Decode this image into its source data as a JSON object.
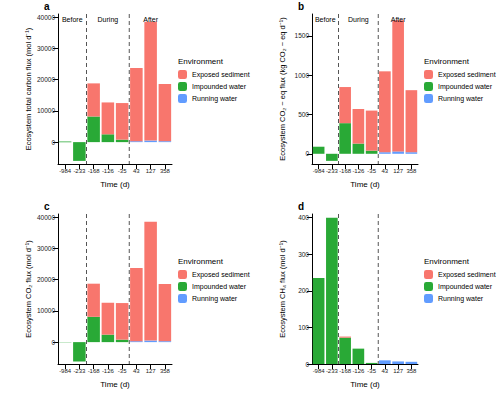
{
  "chart_data": [
    {
      "type": "bar",
      "title": "a",
      "x_label": "Time (d)",
      "y_label": "Ecosystem total carbon flux (mol d⁻¹)",
      "categories": [
        "-984",
        "-233",
        "-168",
        "-126",
        "-35",
        "43",
        "127",
        "358"
      ],
      "series": [
        {
          "name": "Exposed sediment",
          "color": "#F8766D",
          "values": [
            0,
            0,
            10600,
            10200,
            11700,
            23400,
            38000,
            18300
          ]
        },
        {
          "name": "Impounded water",
          "color": "#29A936",
          "values": [
            200,
            -6000,
            8200,
            2500,
            800,
            0,
            0,
            0
          ]
        },
        {
          "name": "Running water",
          "color": "#619CFF",
          "values": [
            0,
            0,
            0,
            0,
            0,
            300,
            500,
            300
          ]
        }
      ],
      "ylim": [
        -7000,
        41000
      ],
      "yticks": [
        0,
        10000,
        20000,
        30000,
        40000
      ],
      "stacked": true,
      "grid": false,
      "legend": "right",
      "legend_title": "Environment",
      "dividers": [
        "-168",
        "43"
      ],
      "annotations": [
        {
          "text": "Before",
          "from": "-984",
          "to": "-233"
        },
        {
          "text": "During",
          "from": "-168",
          "to": "-35"
        },
        {
          "text": "After",
          "from": "43",
          "to": "358"
        }
      ]
    },
    {
      "type": "bar",
      "title": "b",
      "x_label": "Time (d)",
      "y_label": "Ecosystem CO₂ − eq flux (kg CO₂ − eq d⁻¹)",
      "categories": [
        "-984",
        "-233",
        "-168",
        "-126",
        "-35",
        "43",
        "127",
        "358"
      ],
      "series": [
        {
          "name": "Exposed sediment",
          "color": "#F8766D",
          "values": [
            0,
            0,
            460,
            440,
            510,
            1030,
            1670,
            790
          ]
        },
        {
          "name": "Impounded water",
          "color": "#29A936",
          "values": [
            90,
            -90,
            390,
            130,
            40,
            0,
            0,
            0
          ]
        },
        {
          "name": "Running water",
          "color": "#619CFF",
          "values": [
            0,
            0,
            0,
            0,
            0,
            20,
            30,
            20
          ]
        }
      ],
      "ylim": [
        -130,
        1780
      ],
      "yticks": [
        0,
        500,
        1000,
        1500
      ],
      "stacked": true,
      "grid": false,
      "legend": "right",
      "legend_title": "Environment",
      "dividers": [
        "-168",
        "43"
      ],
      "annotations": [
        {
          "text": "Before",
          "from": "-984",
          "to": "-233"
        },
        {
          "text": "During",
          "from": "-168",
          "to": "-35"
        },
        {
          "text": "After",
          "from": "43",
          "to": "358"
        }
      ]
    },
    {
      "type": "bar",
      "title": "c",
      "x_label": "Time (d)",
      "y_label": "Ecosystem CO₂ flux (mol d⁻¹)",
      "categories": [
        "-984",
        "-233",
        "-168",
        "-126",
        "-35",
        "43",
        "127",
        "358"
      ],
      "series": [
        {
          "name": "Exposed sediment",
          "color": "#F8766D",
          "values": [
            0,
            0,
            10600,
            10200,
            11700,
            23400,
            38000,
            18300
          ]
        },
        {
          "name": "Impounded water",
          "color": "#29A936",
          "values": [
            -100,
            -6200,
            8100,
            2400,
            800,
            0,
            0,
            0
          ]
        },
        {
          "name": "Running water",
          "color": "#619CFF",
          "values": [
            0,
            0,
            0,
            0,
            0,
            300,
            500,
            300
          ]
        }
      ],
      "ylim": [
        -7000,
        41000
      ],
      "yticks": [
        0,
        10000,
        20000,
        30000,
        40000
      ],
      "stacked": true,
      "grid": false,
      "legend": "right",
      "legend_title": "Environment",
      "dividers": [
        "-168",
        "43"
      ]
    },
    {
      "type": "bar",
      "title": "d",
      "x_label": "Time (d)",
      "y_label": "Ecosystem CH₄ flux (mol d⁻¹)",
      "categories": [
        "-984",
        "-233",
        "-168",
        "-126",
        "-35",
        "43",
        "127",
        "358"
      ],
      "series": [
        {
          "name": "Exposed sediment",
          "color": "#F8766D",
          "values": [
            0,
            0,
            3,
            0,
            0,
            0,
            0,
            0
          ]
        },
        {
          "name": "Impounded water",
          "color": "#29A936",
          "values": [
            235,
            400,
            72,
            42,
            3,
            0,
            0,
            0
          ]
        },
        {
          "name": "Running water",
          "color": "#619CFF",
          "values": [
            0,
            0,
            0,
            0,
            0,
            10,
            7,
            6
          ]
        }
      ],
      "ylim": [
        0,
        410
      ],
      "yticks": [
        0,
        100,
        200,
        300,
        400
      ],
      "stacked": true,
      "grid": false,
      "legend": "right",
      "legend_title": "Environment",
      "dividers": [
        "-168",
        "43"
      ]
    }
  ]
}
